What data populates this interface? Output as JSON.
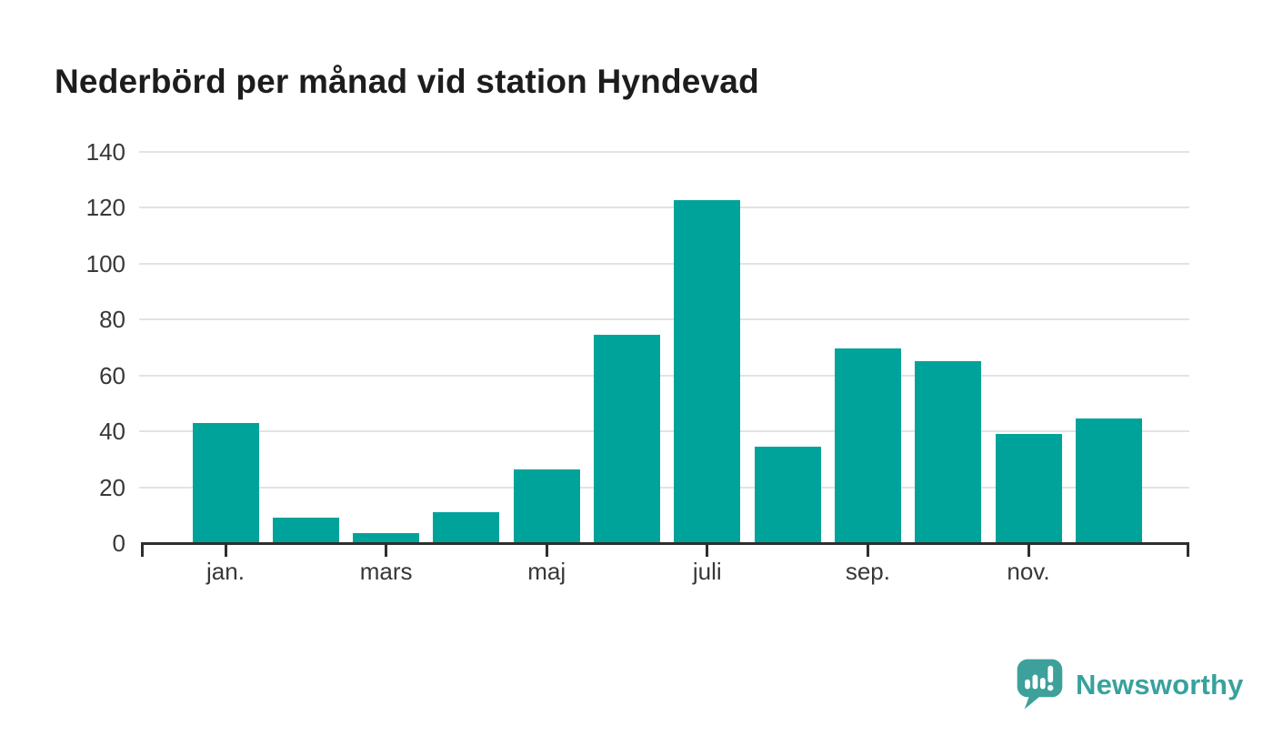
{
  "header": {
    "title": "Nederbörd per månad vid station Hyndevad"
  },
  "chart_data": {
    "type": "bar",
    "title": "Nederbörd per månad vid station Hyndevad",
    "categories": [
      "jan.",
      "",
      "mars",
      "",
      "maj",
      "",
      "juli",
      "",
      "sep.",
      "",
      "nov.",
      ""
    ],
    "visible_x_ticks": [
      "jan.",
      "mars",
      "maj",
      "juli",
      "sep.",
      "nov."
    ],
    "values": [
      43,
      9,
      3.5,
      11,
      26.5,
      74.5,
      122.5,
      34.5,
      69.5,
      65,
      39,
      44.5
    ],
    "y_ticks": [
      0,
      20,
      40,
      60,
      80,
      100,
      120,
      140
    ],
    "ylim": [
      0,
      140
    ],
    "grid": true,
    "legend": false,
    "bar_color": "#00a39a"
  },
  "colors": {
    "bar": "#00a39a",
    "axis": "#2e2e2e",
    "grid": "#e3e3e3",
    "tick_label": "#383838",
    "title": "#1d1d1d",
    "brand": "#38a29d"
  },
  "brand": {
    "name": "Newsworthy"
  }
}
